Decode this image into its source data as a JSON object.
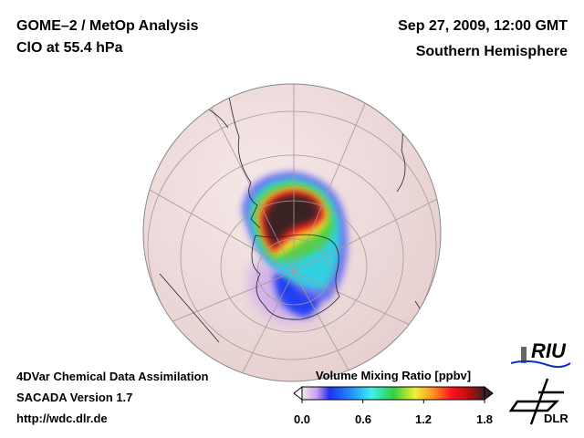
{
  "header": {
    "title": "GOME–2 / MetOp Analysis",
    "subtitle": "ClO at 55.4 hPa",
    "date": "Sep 27, 2009, 12:00 GMT",
    "region": "Southern Hemisphere"
  },
  "footer": {
    "line1": "4DVar Chemical Data Assimilation",
    "line2": "SACADA Version 1.7",
    "line3": "http://wdc.dlr.de"
  },
  "colorbar": {
    "title": "Volume Mixing Ratio [ppbv]",
    "ticks": [
      "0.0",
      "0.6",
      "1.2",
      "1.8"
    ],
    "range": [
      0.0,
      1.8
    ],
    "colors": [
      "#f4e8ec",
      "#c8a0f0",
      "#2030f0",
      "#2090ff",
      "#40f0f0",
      "#30d040",
      "#f0f030",
      "#ff9020",
      "#ff1020",
      "#b01010",
      "#3a2020"
    ]
  },
  "logos": {
    "riu": "RIU",
    "dlr": "DLR"
  },
  "map": {
    "background_color": "#f3e2e2",
    "projection": "orthographic-south-pole"
  }
}
